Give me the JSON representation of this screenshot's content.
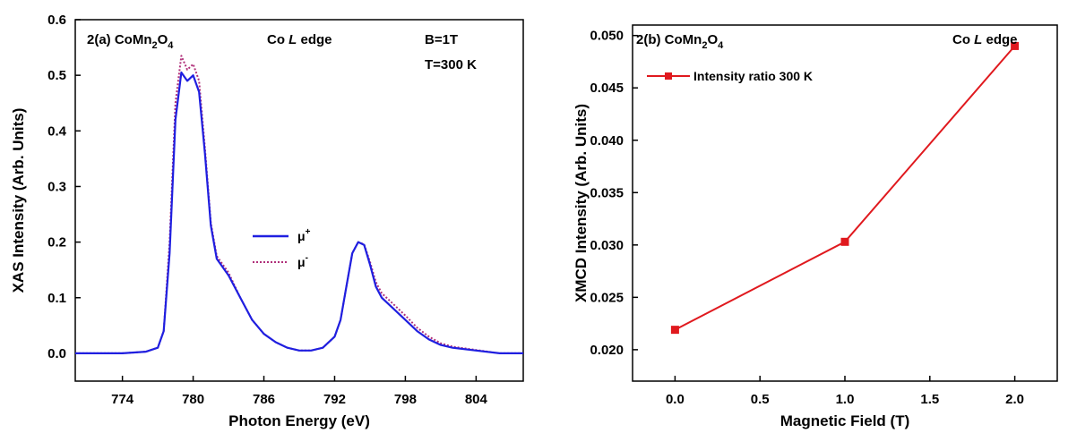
{
  "chart_data": [
    {
      "type": "line",
      "panel": "2(a)",
      "annotations": [
        "2(a) CoMn2O4",
        "Co L edge",
        "B=1T",
        "T=300 K"
      ],
      "xlabel": "Photon Energy (eV)",
      "ylabel": "XAS Intensity (Arb. Units)",
      "xlim": [
        770,
        808
      ],
      "ylim": [
        -0.05,
        0.6
      ],
      "xticks": [
        774,
        780,
        786,
        792,
        798,
        804
      ],
      "yticks": [
        0.0,
        0.1,
        0.2,
        0.3,
        0.4,
        0.5,
        0.6
      ],
      "legend": [
        "μ+",
        "μ-"
      ],
      "legend_position": "center",
      "series": [
        {
          "name": "μ+",
          "color": "#1f1fe0",
          "style": "solid",
          "x": [
            770,
            774,
            776,
            777,
            777.5,
            778,
            778.5,
            779,
            779.5,
            780,
            780.5,
            781,
            781.5,
            782,
            783,
            784,
            785,
            786,
            787,
            788,
            789,
            790,
            791,
            792,
            792.5,
            793,
            793.5,
            794,
            794.5,
            795,
            795.5,
            796,
            797,
            798,
            799,
            800,
            801,
            802,
            804,
            806,
            808
          ],
          "y": [
            0.0,
            0.0,
            0.003,
            0.01,
            0.04,
            0.18,
            0.42,
            0.505,
            0.49,
            0.5,
            0.47,
            0.36,
            0.23,
            0.17,
            0.14,
            0.1,
            0.06,
            0.035,
            0.02,
            0.01,
            0.005,
            0.005,
            0.01,
            0.03,
            0.06,
            0.12,
            0.18,
            0.2,
            0.195,
            0.16,
            0.12,
            0.1,
            0.08,
            0.06,
            0.04,
            0.025,
            0.015,
            0.01,
            0.005,
            0.0,
            0.0
          ]
        },
        {
          "name": "μ-",
          "color": "#b0307a",
          "style": "dotted",
          "x": [
            770,
            774,
            776,
            777,
            777.5,
            778,
            778.5,
            779,
            779.5,
            780,
            780.5,
            781,
            781.5,
            782,
            783,
            784,
            785,
            786,
            787,
            788,
            789,
            790,
            791,
            792,
            792.5,
            793,
            793.5,
            794,
            794.5,
            795,
            795.5,
            796,
            797,
            798,
            799,
            800,
            801,
            802,
            804,
            806,
            808
          ],
          "y": [
            0.0,
            0.0,
            0.003,
            0.01,
            0.04,
            0.2,
            0.45,
            0.535,
            0.51,
            0.52,
            0.49,
            0.37,
            0.235,
            0.175,
            0.145,
            0.1,
            0.06,
            0.035,
            0.02,
            0.01,
            0.005,
            0.005,
            0.01,
            0.03,
            0.06,
            0.12,
            0.18,
            0.2,
            0.196,
            0.165,
            0.128,
            0.108,
            0.088,
            0.068,
            0.046,
            0.03,
            0.018,
            0.012,
            0.006,
            0.0,
            0.0
          ]
        }
      ]
    },
    {
      "type": "line",
      "panel": "2(b)",
      "annotations": [
        "2(b) CoMn2O4",
        "Co L edge"
      ],
      "xlabel": "Magnetic Field (T)",
      "ylabel": "XMCD Intensity (Arb. Units)",
      "xlim": [
        -0.25,
        2.25
      ],
      "ylim": [
        0.017,
        0.051
      ],
      "xticks": [
        0.0,
        0.5,
        1.0,
        1.5,
        2.0
      ],
      "yticks": [
        0.02,
        0.025,
        0.03,
        0.035,
        0.04,
        0.045,
        0.05
      ],
      "legend": [
        "Intensity ratio 300 K"
      ],
      "legend_position": "top-left",
      "series": [
        {
          "name": "Intensity ratio 300 K",
          "color": "#e0191e",
          "marker": "square",
          "x": [
            0.0,
            1.0,
            2.0
          ],
          "y": [
            0.0219,
            0.0303,
            0.049
          ]
        }
      ]
    }
  ]
}
